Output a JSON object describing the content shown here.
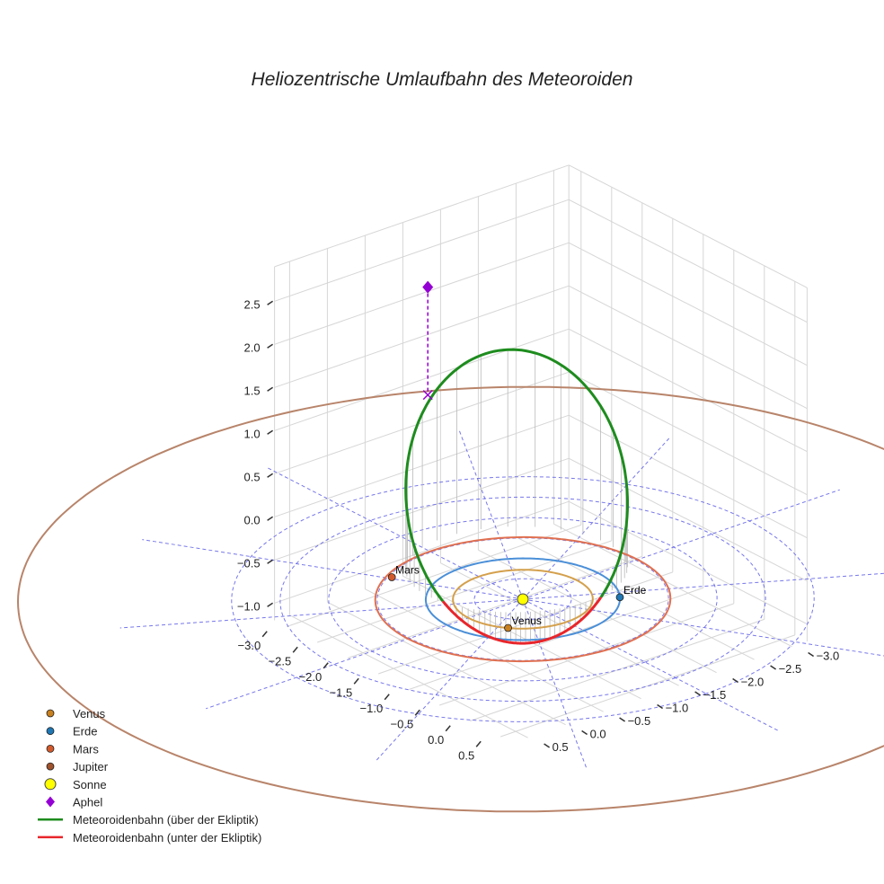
{
  "chart_data": {
    "type": "line",
    "title": "Heliozentrische Umlaufbahn des Meteoroiden",
    "x_ticks": [
      "−3.0",
      "−2.5",
      "−2.0",
      "−1.5",
      "−1.0",
      "−0.5",
      "0.0",
      "0.5"
    ],
    "y_ticks": [
      "−3.0",
      "−2.5",
      "−2.0",
      "−1.5",
      "−1.0",
      "−0.5",
      "0.0",
      "0.5"
    ],
    "z_ticks": [
      "−1.0",
      "−0.5",
      "0.0",
      "0.5",
      "1.0",
      "1.5",
      "2.0",
      "2.5"
    ],
    "xlim": [
      -3.2,
      0.7
    ],
    "ylim": [
      -3.2,
      0.7
    ],
    "zlim": [
      -1.2,
      2.9
    ],
    "planets": [
      {
        "name": "Venus",
        "label": "Venus",
        "orbit_radius_au": 0.72,
        "x": 0.45,
        "y": 0.56,
        "z": 0,
        "orbit_color": "#d4a04c",
        "color": "#c9811f"
      },
      {
        "name": "Erde",
        "label": "Erde",
        "orbit_radius_au": 1.0,
        "x": 0.6,
        "y": -0.8,
        "z": 0,
        "orbit_color": "#4a8fd8",
        "color": "#1f77b4"
      },
      {
        "name": "Mars",
        "label": "Mars",
        "orbit_radius_au": 1.52,
        "x": -1.28,
        "y": 0.7,
        "z": 0,
        "orbit_color": "#e07050",
        "color": "#d35a2d"
      },
      {
        "name": "Jupiter",
        "label": "",
        "orbit_radius_au": 5.2,
        "x": 0,
        "y": 0,
        "z": 0,
        "orbit_color": "#b8846a",
        "color": "#a0522d"
      }
    ],
    "sun": {
      "name": "Sonne",
      "x": 0,
      "y": 0,
      "z": 0,
      "color": "#ffff00"
    },
    "aphel": {
      "name": "Aphel",
      "x": -2.05,
      "y": -0.4,
      "z": 2.75,
      "color": "#9400d3"
    },
    "meteoroid_orbit": {
      "semi_major_axis_au": 1.6,
      "eccentricity": 0.7,
      "inclination_deg": 49,
      "arg_periapsis_deg": 270,
      "ascending_node_deg": 124,
      "color_above": "#1e8c1e",
      "color_below": "#e8262b"
    },
    "ecliptic_grid_radii": [
      0.5,
      1.0,
      1.5,
      2.0,
      2.5,
      3.0
    ],
    "legend": [
      {
        "label": "Venus",
        "marker": "circle",
        "color": "#c9811f"
      },
      {
        "label": "Erde",
        "marker": "circle",
        "color": "#1f77b4"
      },
      {
        "label": "Mars",
        "marker": "circle",
        "color": "#d35a2d"
      },
      {
        "label": "Jupiter",
        "marker": "circle",
        "color": "#a0522d"
      },
      {
        "label": "Sonne",
        "marker": "circle-large",
        "color": "#ffff00"
      },
      {
        "label": "Aphel",
        "marker": "diamond",
        "color": "#9400d3"
      },
      {
        "label": "Meteoroidenbahn (über der Ekliptik)",
        "marker": "line",
        "color": "#1e8c1e"
      },
      {
        "label": "Meteoroidenbahn (unter der Ekliptik)",
        "marker": "line",
        "color": "#e8262b"
      }
    ]
  }
}
